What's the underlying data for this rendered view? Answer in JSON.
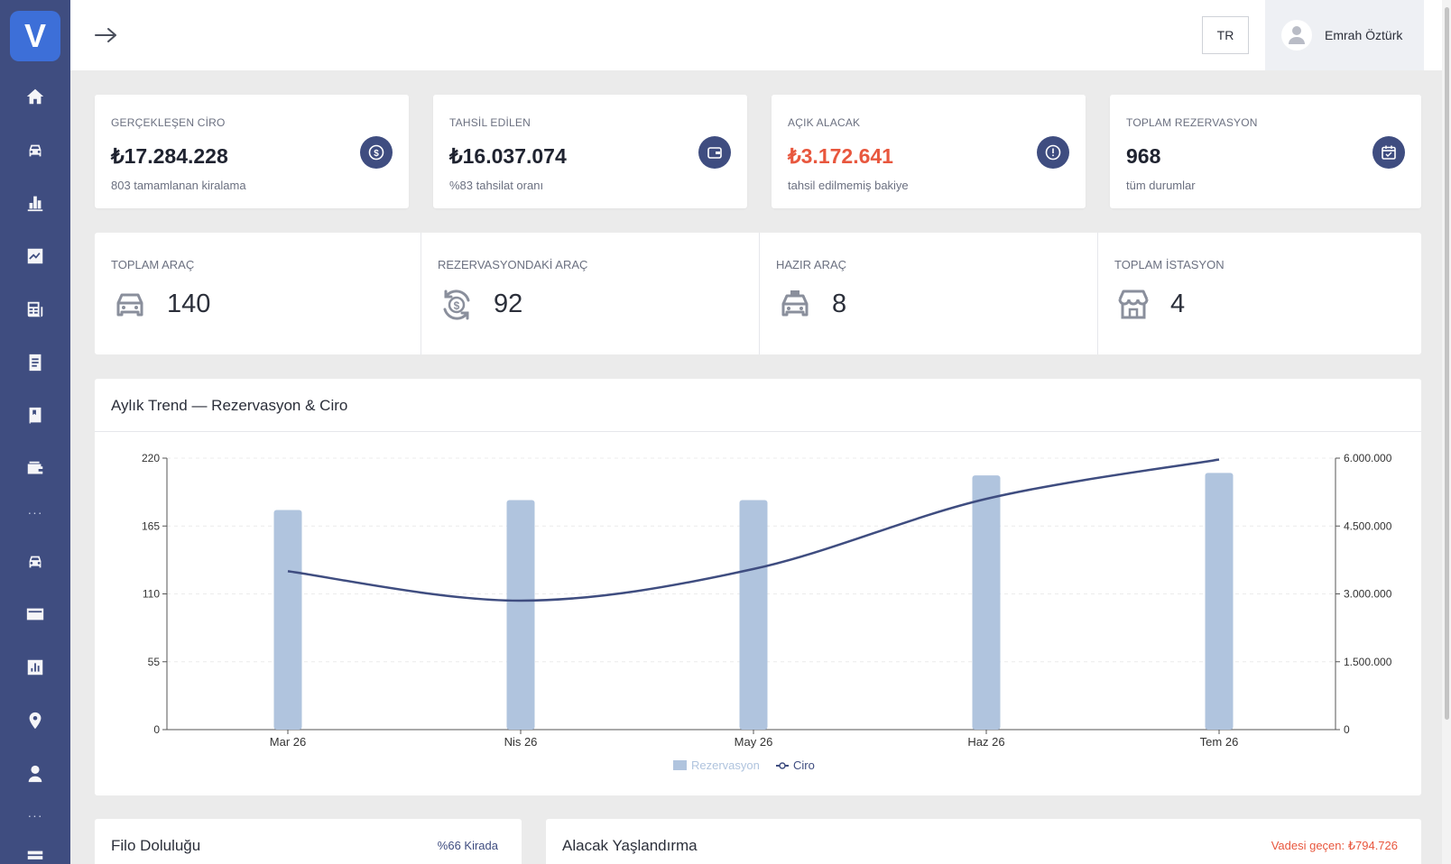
{
  "sidebar": {
    "logo_text": "V",
    "items": [
      {
        "icon": "home-icon"
      },
      {
        "icon": "car-icon"
      },
      {
        "icon": "bar-chart-icon"
      },
      {
        "icon": "trend-chart-icon"
      },
      {
        "icon": "newspaper-icon"
      },
      {
        "icon": "document-icon"
      },
      {
        "icon": "book-icon"
      },
      {
        "icon": "wallet-icon"
      },
      {
        "icon": "car-icon"
      },
      {
        "icon": "credit-card-icon"
      },
      {
        "icon": "report-icon"
      },
      {
        "icon": "location-pin-icon"
      },
      {
        "icon": "user-icon"
      },
      {
        "icon": "list-icon"
      }
    ],
    "dots": "···"
  },
  "header": {
    "language": "TR",
    "user_name": "Emrah Öztürk"
  },
  "stats": [
    {
      "label": "GERÇEKLEŞEN CİRO",
      "value": "₺17.284.228",
      "sub": "803 tamamlanan kiralama",
      "icon": "dollar-icon",
      "highlight": false
    },
    {
      "label": "TAHSİL EDİLEN",
      "value": "₺16.037.074",
      "sub": "%83 tahsilat oranı",
      "icon": "wallet-icon",
      "highlight": false
    },
    {
      "label": "AÇIK ALACAK",
      "value": "₺3.172.641",
      "sub": "tahsil edilmemiş bakiye",
      "icon": "alert-icon",
      "highlight": true
    },
    {
      "label": "TOPLAM REZERVASYON",
      "value": "968",
      "sub": "tüm durumlar",
      "icon": "calendar-icon",
      "highlight": false
    }
  ],
  "fleet": [
    {
      "label": "TOPLAM ARAÇ",
      "value": "140",
      "icon": "car-icon"
    },
    {
      "label": "REZERVASYONDAKİ ARAÇ",
      "value": "92",
      "icon": "cycle-money-icon"
    },
    {
      "label": "HAZIR ARAÇ",
      "value": "8",
      "icon": "taxi-icon"
    },
    {
      "label": "TOPLAM İSTASYON",
      "value": "4",
      "icon": "store-icon"
    }
  ],
  "colors": {
    "sidebar": "#3f4d80",
    "accent": "#3f4d80",
    "bar": "#b0c4de",
    "line": "#3f4d80",
    "danger": "#e8573e"
  },
  "chart_data": {
    "type": "bar",
    "title": "Aylık Trend — Rezervasyon & Ciro",
    "categories": [
      "Mar 26",
      "Nis 26",
      "May 26",
      "Haz 26",
      "Tem 26"
    ],
    "series": [
      {
        "name": "Rezervasyon",
        "type": "bar",
        "axis": "left",
        "values": [
          178,
          186,
          186,
          206,
          208
        ]
      },
      {
        "name": "Ciro",
        "type": "line",
        "axis": "right",
        "values": [
          3500000,
          2850000,
          3550000,
          5100000,
          5970000
        ]
      }
    ],
    "ylim": [
      0,
      220
    ],
    "yticks": [
      "220",
      "165",
      "110",
      "55",
      "0"
    ],
    "y2lim": [
      0,
      6000000
    ],
    "y2ticks": [
      "6.000.000",
      "4.500.000",
      "3.000.000",
      "1.500.000",
      "0"
    ],
    "grid": true,
    "legend": "bottom"
  },
  "bottom": {
    "occupancy_title": "Filo Doluluğu",
    "occupancy_badge": "%66 Kirada",
    "aging_title": "Alacak Yaşlandırma",
    "aging_badge": "Vadesi geçen: ₺794.726"
  }
}
